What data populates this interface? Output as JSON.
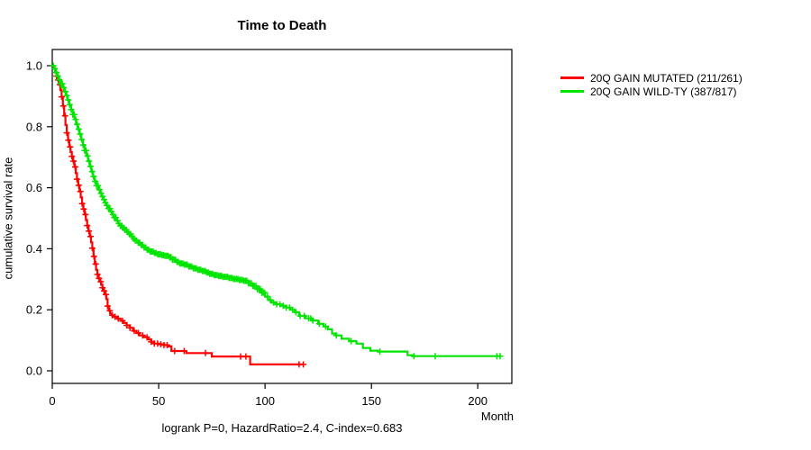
{
  "chart_data": {
    "type": "line",
    "subtype": "kaplan-meier-step-curves",
    "title": "Time to Death",
    "xlabel": "Month",
    "ylabel": "cumulative survival rate",
    "annotation": "logrank P=0, HazardRatio=2.4, C-index=0.683",
    "xlim": [
      0,
      216
    ],
    "ylim": [
      0,
      1
    ],
    "grid": false,
    "legend_position": "outside-right-top",
    "x_ticks": {
      "values": [
        0,
        50,
        100,
        150,
        200
      ],
      "labels": [
        "0",
        "50",
        "100",
        "150",
        "200"
      ]
    },
    "y_ticks": {
      "values": [
        0.0,
        0.2,
        0.4,
        0.6,
        0.8,
        1.0
      ],
      "labels": [
        "0.0",
        "0.2",
        "0.4",
        "0.6",
        "0.8",
        "1.0"
      ]
    },
    "series": [
      {
        "id": "mutated",
        "name": "20Q GAIN MUTATED (211/261)",
        "color": "#FF0000",
        "steps": [
          [
            0,
            1.0
          ],
          [
            0.7,
            0.99
          ],
          [
            1.4,
            0.978
          ],
          [
            2,
            0.966
          ],
          [
            2.6,
            0.953
          ],
          [
            3.2,
            0.938
          ],
          [
            3.8,
            0.92
          ],
          [
            4.4,
            0.898
          ],
          [
            5,
            0.868
          ],
          [
            5.6,
            0.836
          ],
          [
            6.2,
            0.806
          ],
          [
            6.8,
            0.78
          ],
          [
            7.4,
            0.756
          ],
          [
            8,
            0.734
          ],
          [
            8.6,
            0.717
          ],
          [
            9.2,
            0.703
          ],
          [
            9.8,
            0.687
          ],
          [
            10.4,
            0.668
          ],
          [
            11,
            0.648
          ],
          [
            11.6,
            0.628
          ],
          [
            12.2,
            0.608
          ],
          [
            12.8,
            0.588
          ],
          [
            13.4,
            0.568
          ],
          [
            14,
            0.548
          ],
          [
            14.6,
            0.53
          ],
          [
            15.2,
            0.512
          ],
          [
            15.8,
            0.494
          ],
          [
            16.4,
            0.476
          ],
          [
            17,
            0.458
          ],
          [
            17.6,
            0.44
          ],
          [
            18.2,
            0.421
          ],
          [
            18.8,
            0.402
          ],
          [
            19.4,
            0.375
          ],
          [
            20,
            0.35
          ],
          [
            20.6,
            0.331
          ],
          [
            21.2,
            0.316
          ],
          [
            21.8,
            0.303
          ],
          [
            22.4,
            0.292
          ],
          [
            23,
            0.282
          ],
          [
            23.6,
            0.272
          ],
          [
            24.2,
            0.262
          ],
          [
            24.8,
            0.25
          ],
          [
            25.4,
            0.235
          ],
          [
            26,
            0.212
          ],
          [
            26.6,
            0.197
          ],
          [
            27.2,
            0.188
          ],
          [
            28,
            0.182
          ],
          [
            29,
            0.177
          ],
          [
            30.5,
            0.171
          ],
          [
            32,
            0.164
          ],
          [
            33.5,
            0.157
          ],
          [
            35,
            0.149
          ],
          [
            36.5,
            0.141
          ],
          [
            38,
            0.131
          ],
          [
            39.5,
            0.124
          ],
          [
            41,
            0.116
          ],
          [
            43,
            0.11
          ],
          [
            45,
            0.103
          ],
          [
            46.5,
            0.095
          ],
          [
            48,
            0.089
          ],
          [
            50,
            0.087
          ],
          [
            52.5,
            0.084
          ],
          [
            54.5,
            0.08
          ],
          [
            56,
            0.065
          ],
          [
            63,
            0.058
          ],
          [
            75,
            0.047
          ],
          [
            93,
            0.021
          ],
          [
            118,
            0.021
          ]
        ],
        "censor_months": [
          2,
          2.8,
          3.6,
          4.4,
          5.2,
          6,
          6.8,
          7.6,
          8.4,
          9.2,
          10,
          10.8,
          11.6,
          12.4,
          13.2,
          14,
          14.8,
          15.6,
          16.4,
          17.2,
          18,
          18.8,
          19.6,
          20.4,
          21.2,
          22,
          22.8,
          23.6,
          24.4,
          25.2,
          26,
          27,
          28.2,
          29.5,
          31,
          33,
          35,
          36.5,
          38.5,
          40.5,
          42.5,
          44.5,
          46.5,
          48,
          49.5,
          51,
          52.5,
          54,
          57.5,
          62,
          72,
          88.5,
          91,
          116,
          118
        ]
      },
      {
        "id": "wildtype",
        "name": "20Q GAIN WILD-TY (387/817)",
        "color": "#00E500",
        "steps": [
          [
            0,
            1.0
          ],
          [
            0.8,
            0.99
          ],
          [
            1.6,
            0.978
          ],
          [
            2.4,
            0.966
          ],
          [
            3.2,
            0.954
          ],
          [
            4,
            0.941
          ],
          [
            4.8,
            0.928
          ],
          [
            5.6,
            0.915
          ],
          [
            6.4,
            0.902
          ],
          [
            7.2,
            0.888
          ],
          [
            8,
            0.872
          ],
          [
            8.8,
            0.856
          ],
          [
            9.6,
            0.84
          ],
          [
            10.4,
            0.824
          ],
          [
            11.2,
            0.808
          ],
          [
            12,
            0.792
          ],
          [
            12.8,
            0.776
          ],
          [
            13.6,
            0.758
          ],
          [
            14.4,
            0.74
          ],
          [
            15.2,
            0.722
          ],
          [
            16,
            0.704
          ],
          [
            16.8,
            0.687
          ],
          [
            17.6,
            0.67
          ],
          [
            18.4,
            0.653
          ],
          [
            19.2,
            0.637
          ],
          [
            20,
            0.621
          ],
          [
            20.8,
            0.607
          ],
          [
            21.6,
            0.594
          ],
          [
            22.4,
            0.582
          ],
          [
            23.2,
            0.571
          ],
          [
            24,
            0.561
          ],
          [
            24.8,
            0.551
          ],
          [
            25.6,
            0.542
          ],
          [
            26.4,
            0.532
          ],
          [
            27.2,
            0.522
          ],
          [
            28,
            0.512
          ],
          [
            29,
            0.502
          ],
          [
            30,
            0.492
          ],
          [
            31,
            0.483
          ],
          [
            32,
            0.475
          ],
          [
            33,
            0.468
          ],
          [
            34,
            0.462
          ],
          [
            35,
            0.455
          ],
          [
            36,
            0.448
          ],
          [
            37,
            0.44
          ],
          [
            38,
            0.433
          ],
          [
            39,
            0.427
          ],
          [
            40,
            0.42
          ],
          [
            41.5,
            0.412
          ],
          [
            43,
            0.404
          ],
          [
            44.5,
            0.397
          ],
          [
            46,
            0.391
          ],
          [
            47.5,
            0.386
          ],
          [
            49,
            0.382
          ],
          [
            51,
            0.379
          ],
          [
            53,
            0.377
          ],
          [
            55,
            0.373
          ],
          [
            56.5,
            0.364
          ],
          [
            58,
            0.357
          ],
          [
            60,
            0.352
          ],
          [
            62,
            0.348
          ],
          [
            64,
            0.342
          ],
          [
            66,
            0.336
          ],
          [
            68,
            0.331
          ],
          [
            70,
            0.327
          ],
          [
            72,
            0.322
          ],
          [
            74,
            0.318
          ],
          [
            76,
            0.314
          ],
          [
            78,
            0.311
          ],
          [
            80,
            0.308
          ],
          [
            82.5,
            0.304
          ],
          [
            85,
            0.301
          ],
          [
            87.5,
            0.298
          ],
          [
            90,
            0.295
          ],
          [
            92,
            0.287
          ],
          [
            94,
            0.278
          ],
          [
            96,
            0.268
          ],
          [
            98,
            0.256
          ],
          [
            100,
            0.243
          ],
          [
            101.5,
            0.232
          ],
          [
            103,
            0.224
          ],
          [
            105,
            0.218
          ],
          [
            107.5,
            0.213
          ],
          [
            110,
            0.207
          ],
          [
            112,
            0.2
          ],
          [
            114,
            0.192
          ],
          [
            116,
            0.18
          ],
          [
            119,
            0.172
          ],
          [
            122,
            0.165
          ],
          [
            125,
            0.154
          ],
          [
            127.5,
            0.145
          ],
          [
            129.5,
            0.136
          ],
          [
            131.5,
            0.122
          ],
          [
            133.5,
            0.116
          ],
          [
            136,
            0.105
          ],
          [
            139.5,
            0.097
          ],
          [
            143,
            0.089
          ],
          [
            146,
            0.075
          ],
          [
            149.5,
            0.066
          ],
          [
            153,
            0.063
          ],
          [
            167,
            0.051
          ],
          [
            169.5,
            0.048
          ],
          [
            211,
            0.048
          ]
        ],
        "censor_months": [
          0.5,
          1.2,
          1.9,
          2.6,
          3.3,
          4,
          4.7,
          5.4,
          6.1,
          6.8,
          7.5,
          8.2,
          8.9,
          9.6,
          10.3,
          11,
          11.7,
          12.4,
          13.1,
          13.8,
          14.5,
          15.2,
          15.9,
          16.6,
          17.3,
          18,
          18.7,
          19.4,
          20.1,
          20.8,
          21.5,
          22.2,
          22.9,
          23.6,
          24.3,
          25,
          25.7,
          26.4,
          27.1,
          27.8,
          28.5,
          29.2,
          29.9,
          30.6,
          31.3,
          32,
          32.7,
          33.4,
          34.1,
          34.8,
          35.5,
          36.2,
          36.9,
          37.6,
          38.3,
          39,
          39.7,
          40.4,
          41.1,
          41.8,
          42.5,
          43.2,
          43.9,
          44.6,
          45.3,
          46,
          46.7,
          47.4,
          48.1,
          48.8,
          49.5,
          50.2,
          50.9,
          51.6,
          52.3,
          53,
          53.7,
          54.4,
          55.1,
          55.8,
          56.5,
          57.2,
          57.9,
          58.6,
          59.3,
          60,
          60.7,
          61.4,
          62.1,
          62.8,
          63.5,
          64.2,
          64.9,
          65.6,
          66.3,
          67,
          67.7,
          68.4,
          69.1,
          69.8,
          70.5,
          71.2,
          71.9,
          72.6,
          73.3,
          74,
          74.7,
          75.4,
          76.1,
          76.8,
          77.5,
          78.2,
          78.9,
          79.6,
          80.3,
          81,
          81.7,
          82.4,
          83.1,
          83.8,
          84.5,
          85.2,
          85.9,
          86.6,
          87.3,
          88,
          88.7,
          89.4,
          90.1,
          90.8,
          91.5,
          92.2,
          92.9,
          93.6,
          94.3,
          95,
          95.7,
          96.4,
          97.1,
          97.8,
          98.5,
          99.2,
          99.9,
          101.2,
          102.5,
          104,
          105.5,
          107,
          108.5,
          110,
          111.5,
          113,
          114.5,
          116.5,
          118.5,
          120.5,
          121.5,
          122.5,
          125.5,
          128.5,
          133.5,
          140.5,
          154,
          170,
          180,
          209,
          210.5
        ]
      }
    ]
  }
}
